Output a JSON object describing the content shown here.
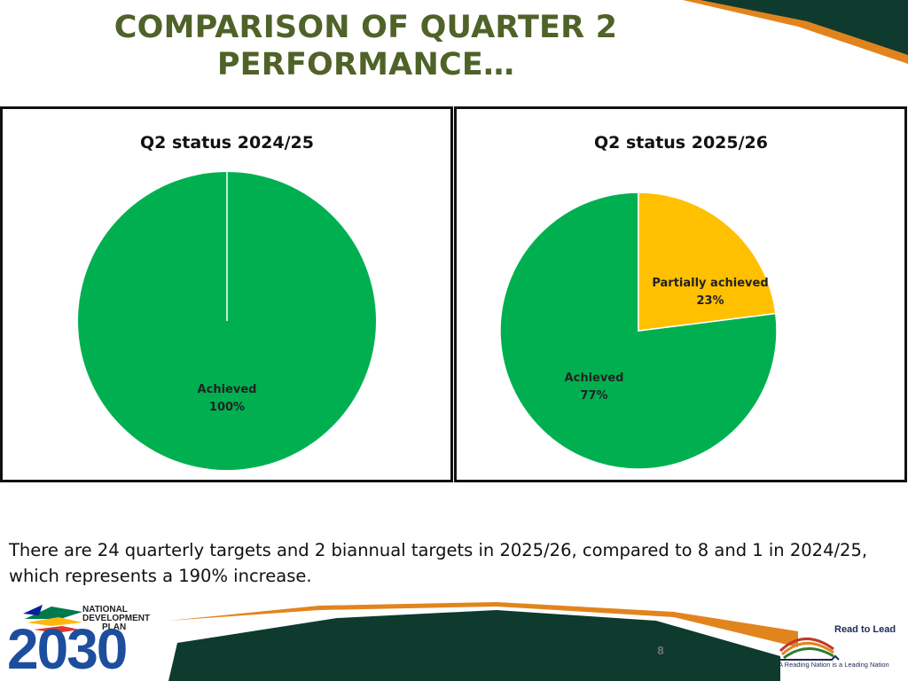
{
  "slide": {
    "title": "COMPARISON OF QUARTER 2 PERFORMANCE…",
    "description": "There are 24 quarterly targets and 2 biannual targets in 2025/26, compared to 8 and 1 in 2024/25, which represents a 190% increase.",
    "page_number": "8"
  },
  "logos": {
    "ndp_line1": "NATIONAL",
    "ndp_line2": "DEVELOPMENT",
    "ndp_line3": "PLAN",
    "ndp_year": "2030",
    "rtl_title": "Read to Lead",
    "rtl_tagline": "A Reading Nation is a Leading Nation"
  },
  "colors": {
    "achieved": "#00b050",
    "partially_achieved": "#ffc000",
    "title": "#4f6228",
    "band_dark": "#0e3b2e",
    "band_orange": "#e2841e"
  },
  "chart_data": [
    {
      "type": "pie",
      "title": "Q2 status 2024/25",
      "slices": [
        {
          "label": "Achieved",
          "value": 100,
          "value_label": "100%",
          "color": "#00b050"
        }
      ]
    },
    {
      "type": "pie",
      "title": "Q2 status 2025/26",
      "slices": [
        {
          "label": "Partially achieved",
          "value": 23,
          "value_label": "23%",
          "color": "#ffc000"
        },
        {
          "label": "Achieved",
          "value": 77,
          "value_label": "77%",
          "color": "#00b050"
        }
      ]
    }
  ]
}
